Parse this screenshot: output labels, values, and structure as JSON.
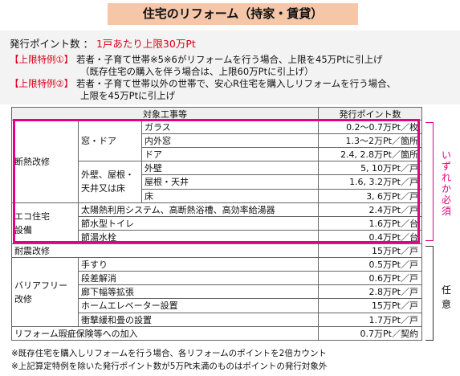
{
  "title": "住宅のリフォーム（持家・賃貸）",
  "points": {
    "label": "発行ポイント数 ：",
    "value": "1戸あたり上限30万Pt"
  },
  "special1": {
    "tag": "【上限特例①】",
    "line1": "若者・子育て世帯※5※6がリフォームを行う場合、上限を45万Ptに引上げ",
    "line2": "（既存住宅の購入を伴う場合は、上限60万Ptに引上げ）"
  },
  "special2": {
    "tag": "【上限特例②】",
    "line1": "若者・子育て世帯以外の世帯で、安心R住宅を購入しリフォームを行う場合、",
    "line2": "上限を45万Ptに引上げ"
  },
  "table": {
    "header_work": "対象工事等",
    "header_points": "発行ポイント数",
    "insulation": "断熱改修",
    "window_door": "窓・ドア",
    "glass": "ガラス",
    "glass_pt": "0.2～0.7万Pt／枚",
    "inner_window": "内外窓",
    "inner_window_pt": "1.3～2万Pt／箇所",
    "door": "ドア",
    "door_pt": "2.4, 2.8万Pt／箇所",
    "wall_roof_line1": "外壁、屋根・",
    "wall_roof_line2": "天井又は床",
    "outer_wall": "外壁",
    "outer_wall_pt": "5, 10万Pt／戸",
    "roof": "屋根・天井",
    "roof_pt": "1.6, 3.2万Pt／戸",
    "floor": "床",
    "floor_pt": "3, 6万Pt／戸",
    "eco_line1": "エコ住宅",
    "eco_line2": "設備",
    "solar": "太陽熱利用システム、高断熱浴槽、高効率給湯器",
    "solar_pt": "2.4万Pt／戸",
    "toilet": "節水型トイレ",
    "toilet_pt": "1.6万Pt／台",
    "faucet": "節湯水栓",
    "faucet_pt": "0.4万Pt／台",
    "seismic": "耐震改修",
    "seismic_pt": "15万Pt／戸",
    "barrier_line1": "バリアフリー",
    "barrier_line2": "改修",
    "handrail": "手すり",
    "handrail_pt": "0.5万Pt／戸",
    "step": "段差解消",
    "step_pt": "0.6万Pt／戸",
    "corridor": "廊下幅等拡張",
    "corridor_pt": "2.8万Pt／戸",
    "elevator": "ホームエレベーター設置",
    "elevator_pt": "15万Pt／戸",
    "shock": "衝撃緩和畳の設置",
    "shock_pt": "1.7万Pt／戸",
    "insurance": "リフォーム瑕疵保険等への加入",
    "insurance_pt": "0.7万Pt／契約"
  },
  "side": {
    "required": [
      "い",
      "ず",
      "れ",
      "か",
      "必",
      "須"
    ],
    "optional": [
      "任",
      "意"
    ]
  },
  "notes": [
    "※既存住宅を購入しリフォームを行う場合、各リフォームのポイントを2倍カウント",
    "※上記算定特例を除いた発行ポイント数が5万Pt未満のものはポイントの発行対象外"
  ]
}
